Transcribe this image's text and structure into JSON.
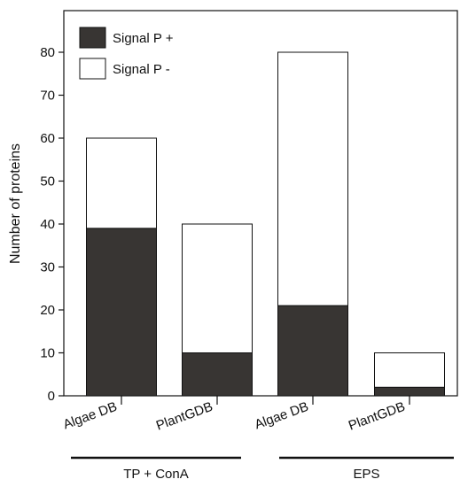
{
  "chart_data": {
    "type": "bar",
    "stacked": true,
    "categories": [
      "Algae DB",
      "PlantGDB",
      "Algae DB",
      "PlantGDB"
    ],
    "groups": [
      {
        "label": "TP + ConA",
        "categories": [
          0,
          1
        ]
      },
      {
        "label": "EPS",
        "categories": [
          2,
          3
        ]
      }
    ],
    "series": [
      {
        "name": "Signal P +",
        "values": [
          39,
          10,
          21,
          2
        ],
        "color": "#383533"
      },
      {
        "name": "Signal P -",
        "values": [
          21,
          30,
          59,
          8
        ],
        "color": "#ffffff"
      }
    ],
    "title": "",
    "xlabel": "",
    "ylabel": "Number of proteins",
    "ylim": [
      0,
      90
    ],
    "yticks": [
      0,
      10,
      20,
      30,
      40,
      50,
      60,
      70,
      80
    ],
    "grid": false,
    "legend_position": "top-left"
  }
}
